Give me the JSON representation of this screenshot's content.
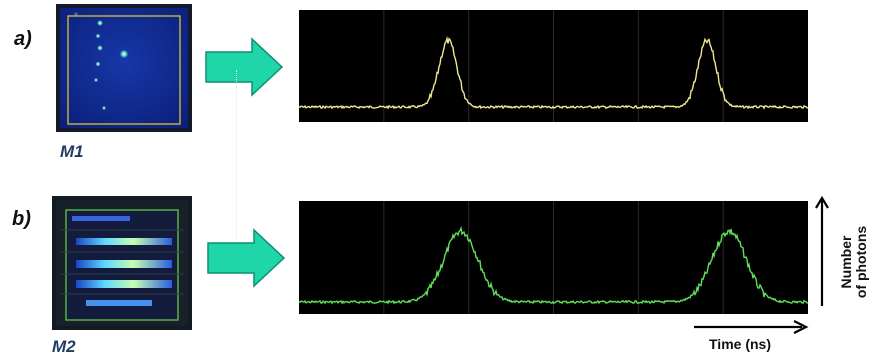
{
  "panels": {
    "a": {
      "label": "a)",
      "mask": "M1"
    },
    "b": {
      "label": "b)",
      "mask": "M2"
    }
  },
  "axes": {
    "time": "Time (ns)",
    "photons_line1": "Number",
    "photons_line2": "of photons"
  },
  "colors": {
    "arrow_fill": "#1ed6a8",
    "arrow_stroke": "#0e8f72",
    "trace_a": "#efe892",
    "trace_b": "#5fdf5a",
    "frame_m1": "#c9b93a",
    "frame_m2": "#5dbb46",
    "oscilloscope_bg": "#000000",
    "grid": "#2a2a2a"
  },
  "icons": {
    "arrow": "right-arrow-icon",
    "time_axis": "arrow-right-icon",
    "photon_axis": "arrow-up-icon"
  }
}
